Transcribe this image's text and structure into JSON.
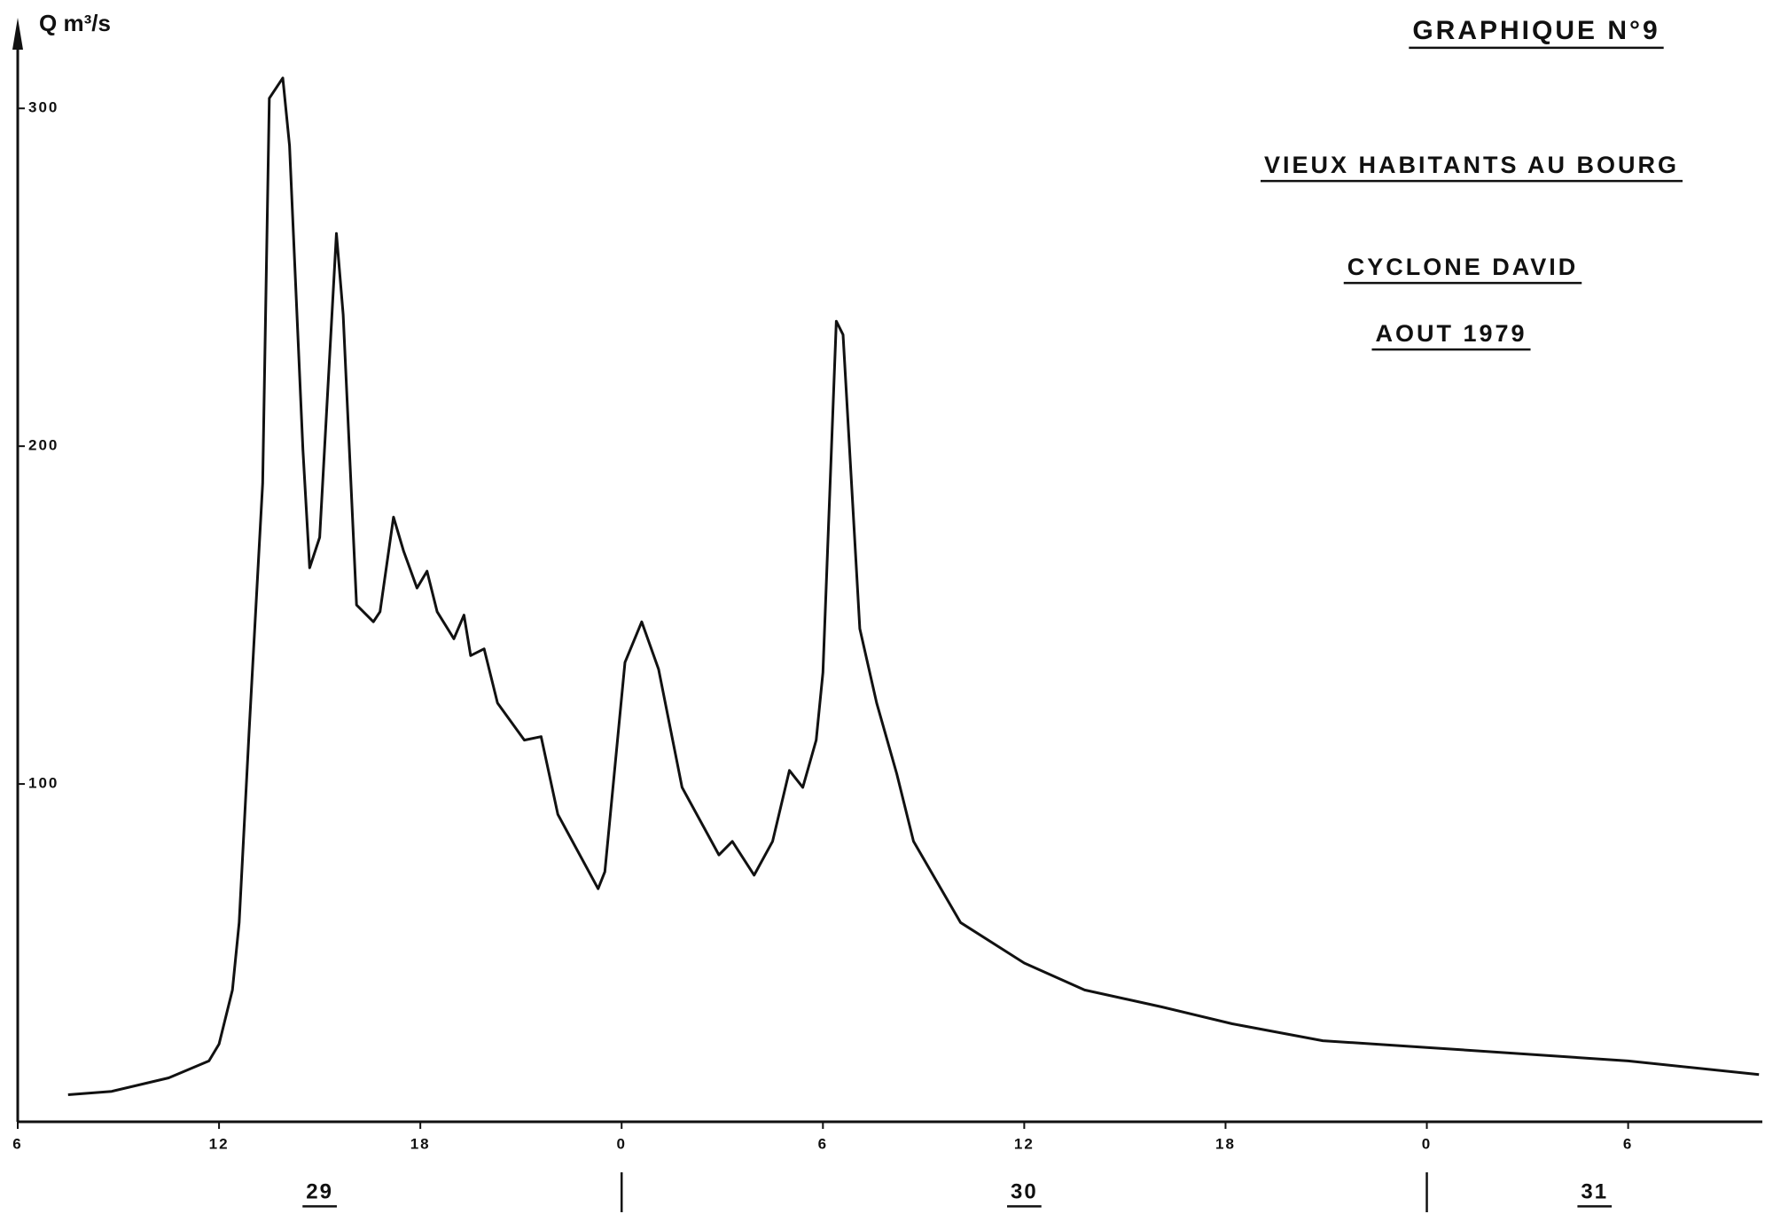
{
  "chart_data": {
    "type": "line",
    "title": "GRAPHIQUE N°9",
    "subtitles": [
      "VIEUX HABITANTS AU BOURG",
      "CYCLONE DAVID",
      "AOUT 1979"
    ],
    "y_label": "Q m³/s",
    "days": [
      "29",
      "30",
      "31"
    ],
    "xlim": [
      6,
      58
    ],
    "xticks": [
      6,
      12,
      18,
      {
        "value": 24,
        "label": "0"
      },
      {
        "value": 30,
        "label": "6"
      },
      {
        "value": 36,
        "label": "12"
      },
      {
        "value": 42,
        "label": "18"
      },
      {
        "value": 48,
        "label": "0"
      },
      {
        "value": 54,
        "label": "6"
      }
    ],
    "ylim": [
      0,
      325
    ],
    "yticks": [
      100,
      200,
      300
    ],
    "series": [
      {
        "color": "#111111",
        "x": [
          7.5,
          8.8,
          10.5,
          11.7,
          12.0,
          12.4,
          12.6,
          12.9,
          13.3,
          13.5,
          13.9,
          14.1,
          14.5,
          14.7,
          15.0,
          15.5,
          15.7,
          16.1,
          16.6,
          16.8,
          17.2,
          17.5,
          17.9,
          18.2,
          18.5,
          19.0,
          19.3,
          19.5,
          19.9,
          20.3,
          21.1,
          21.6,
          22.1,
          23.3,
          23.5,
          24.1,
          24.6,
          25.1,
          25.8,
          26.9,
          27.3,
          27.95,
          28.5,
          29.0,
          29.4,
          29.8,
          30.0,
          30.4,
          30.6,
          31.1,
          31.6,
          32.2,
          32.7,
          34.1,
          36.0,
          37.8,
          40.1,
          42.2,
          44.9,
          48.0,
          54.0,
          57.9
        ],
        "values": [
          8,
          9,
          13,
          18,
          23,
          39,
          59,
          116,
          189,
          303,
          309,
          289,
          199,
          164,
          173,
          263,
          239,
          153,
          148,
          151,
          179,
          169,
          158,
          163,
          151,
          143,
          150,
          138,
          140,
          124,
          113,
          114,
          91,
          69,
          74,
          136,
          148,
          134,
          99,
          79,
          83,
          73,
          83,
          104,
          99,
          113,
          133,
          237,
          233,
          146,
          124,
          103,
          83,
          59,
          47,
          39,
          34,
          29,
          24,
          22,
          18,
          14
        ]
      }
    ]
  }
}
